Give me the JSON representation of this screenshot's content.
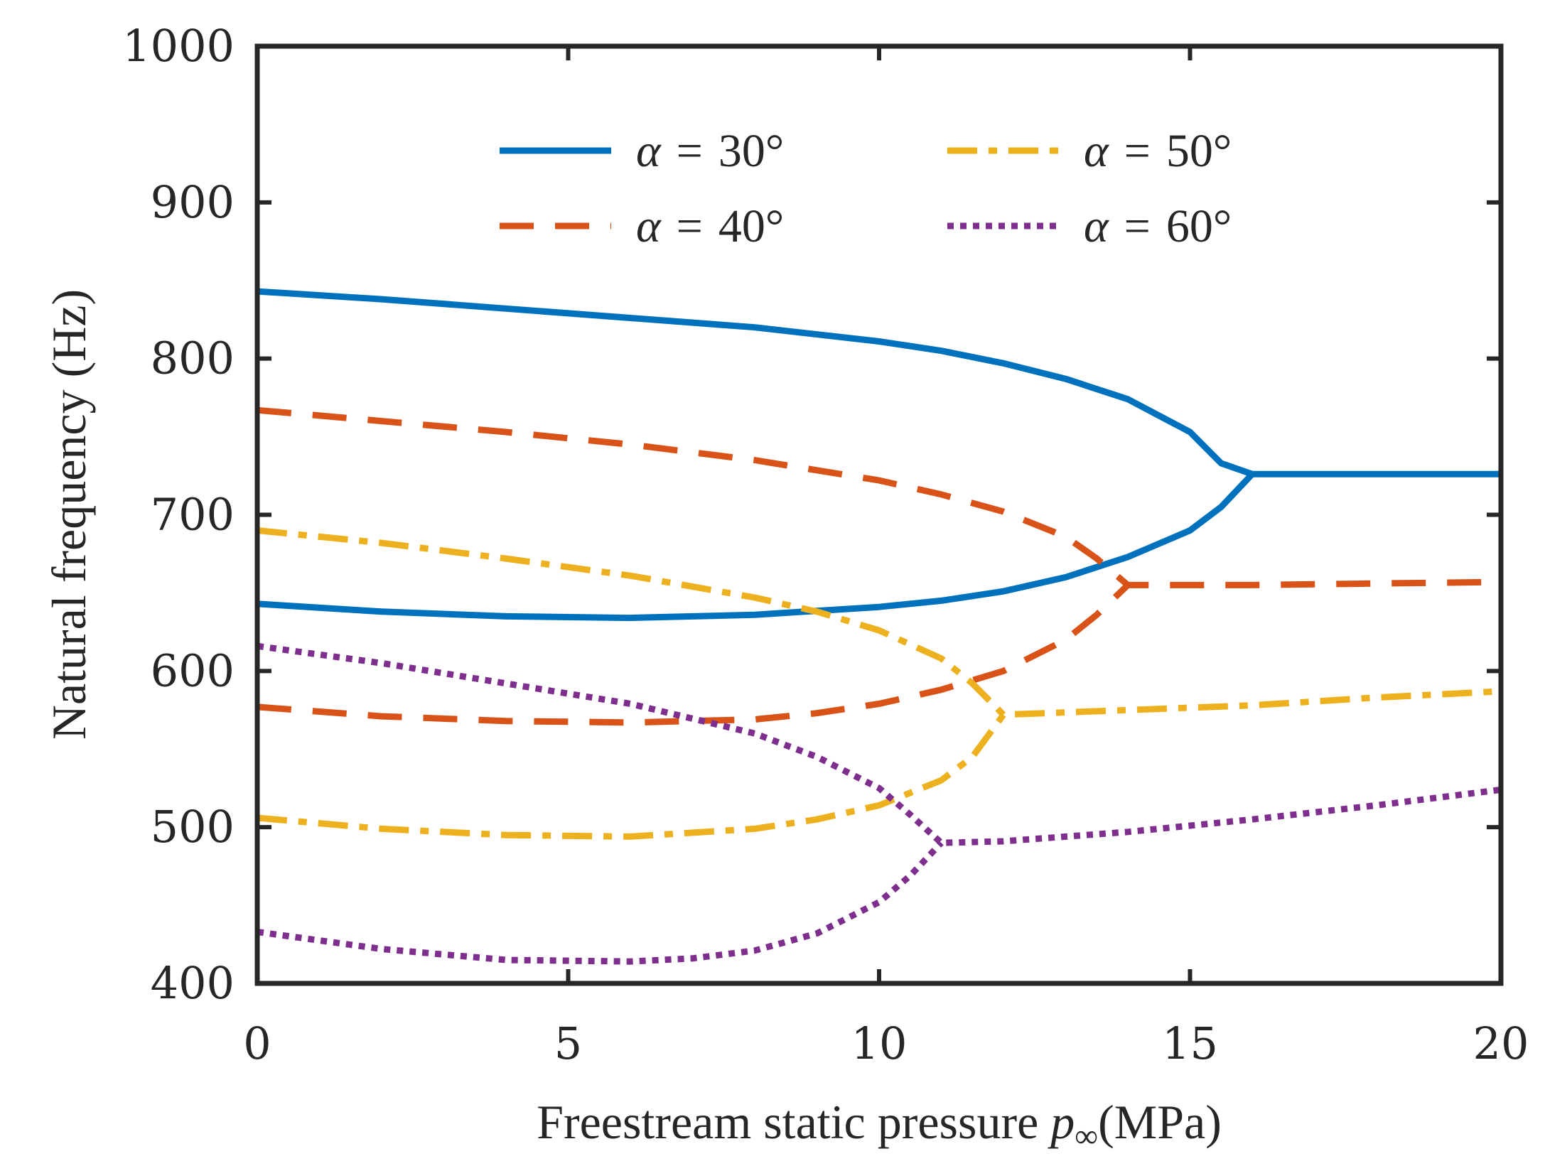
{
  "chart_data": {
    "type": "line",
    "title": "",
    "xlabel": "Freestream static pressure",
    "xlabel_symbol": "p",
    "xlabel_subscript": "∞",
    "xlabel_unit": "(MPa)",
    "ylabel": "Natural frequency (Hz)",
    "xlim": [
      0,
      20
    ],
    "ylim": [
      400,
      1000
    ],
    "xticks": [
      0,
      5,
      10,
      15,
      20
    ],
    "yticks": [
      400,
      500,
      600,
      700,
      800,
      900,
      1000
    ],
    "grid": false,
    "legend_position": "top",
    "series": [
      {
        "name": "α = 30°",
        "alpha_symbol": "α",
        "equals": "=",
        "angle": "30°",
        "color": "#0072BD",
        "style": "solid",
        "branches": [
          {
            "x": [
              0,
              2,
              4,
              6,
              8,
              10,
              11,
              12,
              13,
              14,
              15,
              15.5,
              16,
              18,
              20
            ],
            "y": [
              843,
              838,
              832,
              826,
              820,
              811,
              805,
              797,
              787,
              774,
              753,
              733,
              726,
              726,
              726
            ]
          },
          {
            "x": [
              0,
              2,
              4,
              6,
              8,
              10,
              11,
              12,
              13,
              14,
              15,
              15.5,
              16
            ],
            "y": [
              643,
              638,
              635,
              634,
              636,
              641,
              645,
              651,
              660,
              673,
              690,
              705,
              726
            ]
          }
        ]
      },
      {
        "name": "α = 40°",
        "alpha_symbol": "α",
        "equals": "=",
        "angle": "40°",
        "color": "#D95319",
        "style": "dashed",
        "branches": [
          {
            "x": [
              0,
              2,
              4,
              6,
              8,
              10,
              11,
              12,
              13,
              13.5,
              14,
              16,
              18,
              20
            ],
            "y": [
              767,
              760,
              753,
              745,
              735,
              722,
              713,
              702,
              686,
              672,
              655,
              655,
              656,
              657
            ]
          },
          {
            "x": [
              0,
              2,
              4,
              6,
              8,
              9,
              10,
              11,
              12,
              13,
              13.5,
              14
            ],
            "y": [
              577,
              571,
              568,
              567,
              569,
              573,
              579,
              588,
              600,
              620,
              636,
              655
            ]
          }
        ]
      },
      {
        "name": "α = 50°",
        "alpha_symbol": "α",
        "equals": "=",
        "angle": "50°",
        "color": "#EDB120",
        "style": "dashdot",
        "branches": [
          {
            "x": [
              0,
              2,
              4,
              6,
              8,
              9,
              10,
              11,
              11.5,
              12,
              14,
              16,
              18,
              20
            ],
            "y": [
              690,
              682,
              672,
              661,
              647,
              638,
              626,
              608,
              592,
              572,
              575,
              578,
              583,
              587
            ]
          },
          {
            "x": [
              0,
              2,
              4,
              6,
              8,
              9,
              10,
              11,
              11.5,
              12
            ],
            "y": [
              506,
              499,
              495,
              494,
              499,
              505,
              514,
              530,
              545,
              572
            ]
          }
        ]
      },
      {
        "name": "α = 60°",
        "alpha_symbol": "α",
        "equals": "=",
        "angle": "60°",
        "color": "#7E2F8E",
        "style": "dotted",
        "branches": [
          {
            "x": [
              0,
              2,
              4,
              6,
              8,
              9,
              10,
              10.5,
              11,
              12,
              14,
              16,
              18,
              20
            ],
            "y": [
              616,
              605,
              592,
              579,
              560,
              545,
              525,
              508,
              490,
              491,
              497,
              505,
              514,
              524
            ]
          },
          {
            "x": [
              0,
              2,
              4,
              6,
              7,
              8,
              9,
              10,
              10.5,
              11
            ],
            "y": [
              433,
              422,
              415,
              414,
              416,
              421,
              432,
              452,
              469,
              490
            ]
          }
        ]
      }
    ]
  }
}
